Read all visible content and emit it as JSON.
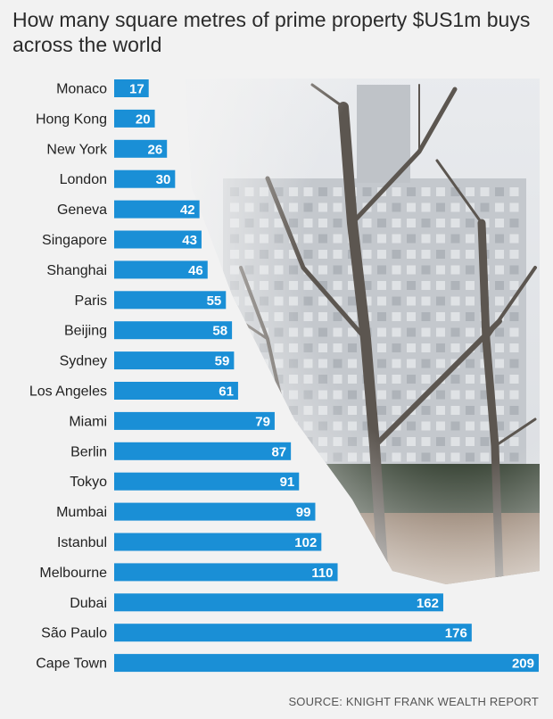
{
  "header": {
    "title": "How many square metres of prime property $US1m buys across the world"
  },
  "footer": {
    "source": "SOURCE: KNIGHT FRANK WEALTH REPORT"
  },
  "colors": {
    "bar": "#1a8fd6",
    "bar_label": "#ffffff",
    "category_label": "#222222",
    "background": "#f2f2f2"
  },
  "chart_data": {
    "type": "bar",
    "orientation": "horizontal",
    "title": "How many square metres of prime property $US1m buys across the world",
    "categories": [
      "Monaco",
      "Hong Kong",
      "New York",
      "London",
      "Geneva",
      "Singapore",
      "Shanghai",
      "Paris",
      "Beijing",
      "Sydney",
      "Los Angeles",
      "Miami",
      "Berlin",
      "Tokyo",
      "Mumbai",
      "Istanbul",
      "Melbourne",
      "Dubai",
      "São Paulo",
      "Cape Town"
    ],
    "values": [
      17,
      20,
      26,
      30,
      42,
      43,
      46,
      55,
      58,
      59,
      61,
      79,
      87,
      91,
      99,
      102,
      110,
      162,
      176,
      209
    ],
    "xlim": [
      0,
      209
    ],
    "grid": false,
    "legend": "none",
    "data_labels": true
  }
}
